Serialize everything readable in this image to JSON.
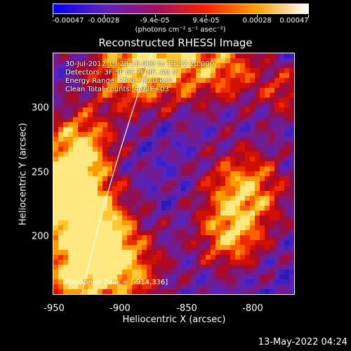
{
  "colorbar": {
    "ticks": [
      "-0.00047",
      "-0.00028",
      "-9.4e-05",
      "9.4e-05",
      "0.00028",
      "0.00047"
    ],
    "units": "(photons cm⁻² s⁻¹ asec⁻²)",
    "colors": [
      "#0000ff",
      "#6020c0",
      "#a01060",
      "#ff2000",
      "#ffa000",
      "#ffffff"
    ]
  },
  "title": "Reconstructed RHESSI Image",
  "info": {
    "time": "30-Jul-2012 19:28:16.000 to 19:32:20.000",
    "detectors": "Detectors: 3F 5F 6F 7F 8F, Att 0",
    "energy": "Energy Range: 25.0 - 50.0 keV",
    "method": "Clean     Total counts: 4.92E+03"
  },
  "peak": "Position of Peak = [-914,336]",
  "x_axis": {
    "label": "Heliocentric X (arcsec)",
    "ticks": [
      "-950",
      "-900",
      "-850",
      "-800"
    ]
  },
  "y_axis": {
    "label": "Heliocentric Y (arcsec)",
    "ticks": [
      "300",
      "250",
      "200"
    ]
  },
  "timestamp": "13-May-2022 04:24"
}
